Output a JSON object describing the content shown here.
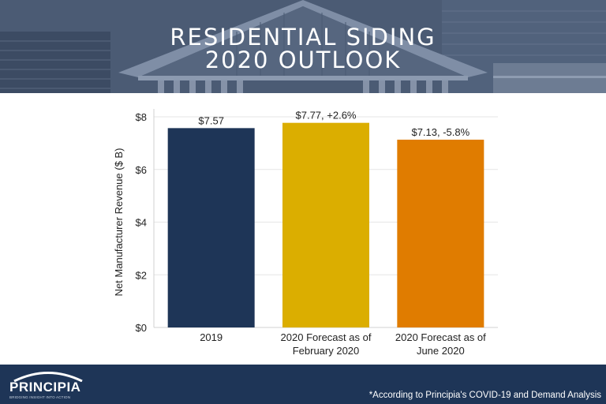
{
  "header": {
    "title_line1": "RESIDENTIAL SIDING",
    "title_line2": "2020 OUTLOOK"
  },
  "chart_data": {
    "type": "bar",
    "categories": [
      [
        "2019"
      ],
      [
        "2020 Forecast as of",
        "February 2020"
      ],
      [
        "2020 Forecast as of",
        "June 2020"
      ]
    ],
    "values": [
      7.57,
      7.77,
      7.13
    ],
    "data_labels": [
      "$7.57",
      "$7.77, +2.6%",
      "$7.13, -5.8%"
    ],
    "colors": [
      "#1e3557",
      "#dbae00",
      "#e07c00"
    ],
    "ylabel": "Net Manufacturer Revenue ($ B)",
    "ylim": [
      0,
      8
    ],
    "yticks": [
      0,
      2,
      4,
      6,
      8
    ],
    "ytick_labels": [
      "$0",
      "$2",
      "$4",
      "$6",
      "$8"
    ],
    "grid": true
  },
  "footer": {
    "logo_name": "PRINCIPIA",
    "logo_tagline": "BRIDGING INSIGHT INTO ACTION",
    "footnote": "*According to Principia's COVID-19 and Demand Analysis"
  }
}
